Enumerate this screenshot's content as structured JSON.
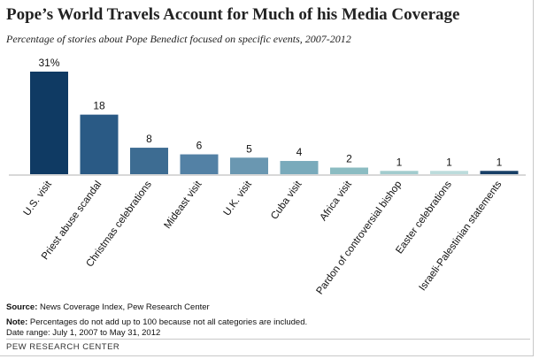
{
  "title": "Pope’s World Travels Account for Much of his Media Coverage",
  "subtitle": "Percentage of stories about Pope Benedict focused on specific events, 2007-2012",
  "chart_data": {
    "type": "bar",
    "title": "Pope’s World Travels Account for Much of his Media Coverage",
    "subtitle": "Percentage of stories about Pope Benedict focused on specific events, 2007-2012",
    "categories": [
      "U.S. visit",
      "Priest abuse scandal",
      "Christmas celebrations",
      "Mideast visit",
      "U.K. visit",
      "Cuba visit",
      "Africa visit",
      "Pardon of controversial bishop",
      "Easter celebrations",
      "Israeli-Palestinian statements"
    ],
    "values": [
      31,
      18,
      8,
      6,
      5,
      4,
      2,
      1,
      1,
      1
    ],
    "data_labels": [
      "31%",
      "18",
      "8",
      "6",
      "5",
      "4",
      "2",
      "1",
      "1",
      "1"
    ],
    "colors": [
      "#0f3a63",
      "#2a5a85",
      "#3d6c92",
      "#5381a5",
      "#6a97b1",
      "#79aabb",
      "#8bbcc2",
      "#a2ccce",
      "#bcdcdc",
      "#183f66"
    ],
    "xlabel": "",
    "ylabel": "",
    "ylim": [
      0,
      31
    ],
    "grid": false,
    "legend": "none"
  },
  "notes": {
    "source_label": "Source:",
    "source_text": " News Coverage Index, Pew Research Center",
    "note_label": "Note:",
    "note_text": " Percentages do not add up to 100 because not all categories are included.",
    "date_range": "Date range: July 1, 2007 to May 31, 2012"
  },
  "footer": "PEW RESEARCH CENTER"
}
